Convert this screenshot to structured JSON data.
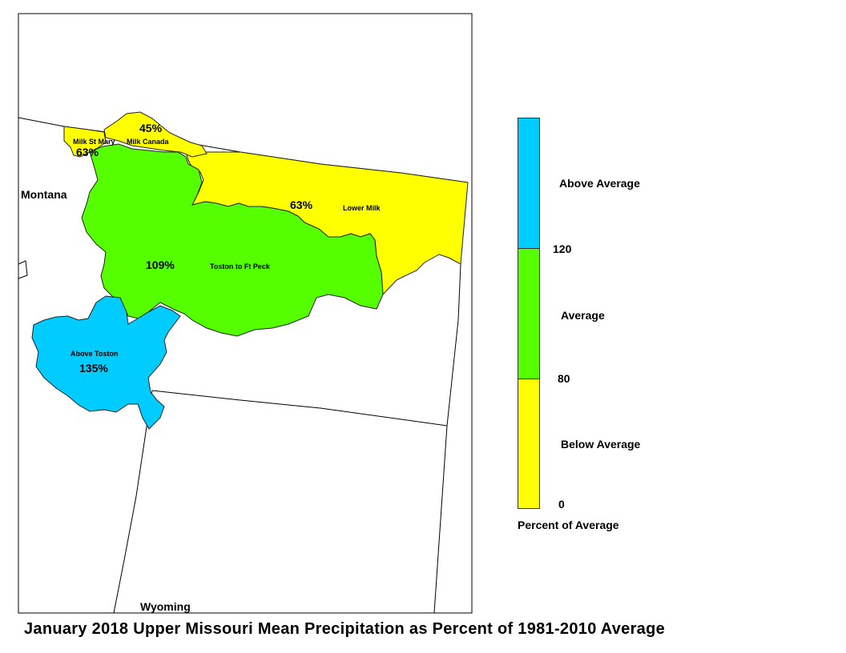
{
  "title": "January 2018 Upper Missouri Mean Precipitation as Percent of 1981-2010 Average",
  "states": {
    "montana": "Montana",
    "wyoming": "Wyoming"
  },
  "basins": [
    {
      "id": "milk-canada",
      "name": "Milk Canada",
      "percent": "45%",
      "color": "#ffff00"
    },
    {
      "id": "milk-st-mary",
      "name": "Milk St Mary",
      "percent": "63%",
      "color": "#ffff00"
    },
    {
      "id": "lower-milk",
      "name": "Lower Milk",
      "percent": "63%",
      "color": "#ffff00"
    },
    {
      "id": "toston-ft-peck",
      "name": "Toston to Ft Peck",
      "percent": "109%",
      "color": "#55ff00"
    },
    {
      "id": "above-toston",
      "name": "Above Toston",
      "percent": "135%",
      "color": "#00ccff"
    }
  ],
  "legend": {
    "title": "Percent of Average",
    "classes": [
      {
        "label": "Above Average",
        "color": "#00ccff"
      },
      {
        "label": "Average",
        "color": "#55ff00"
      },
      {
        "label": "Below Average",
        "color": "#ffff00"
      }
    ],
    "breaks": [
      "120",
      "80",
      "0"
    ]
  }
}
